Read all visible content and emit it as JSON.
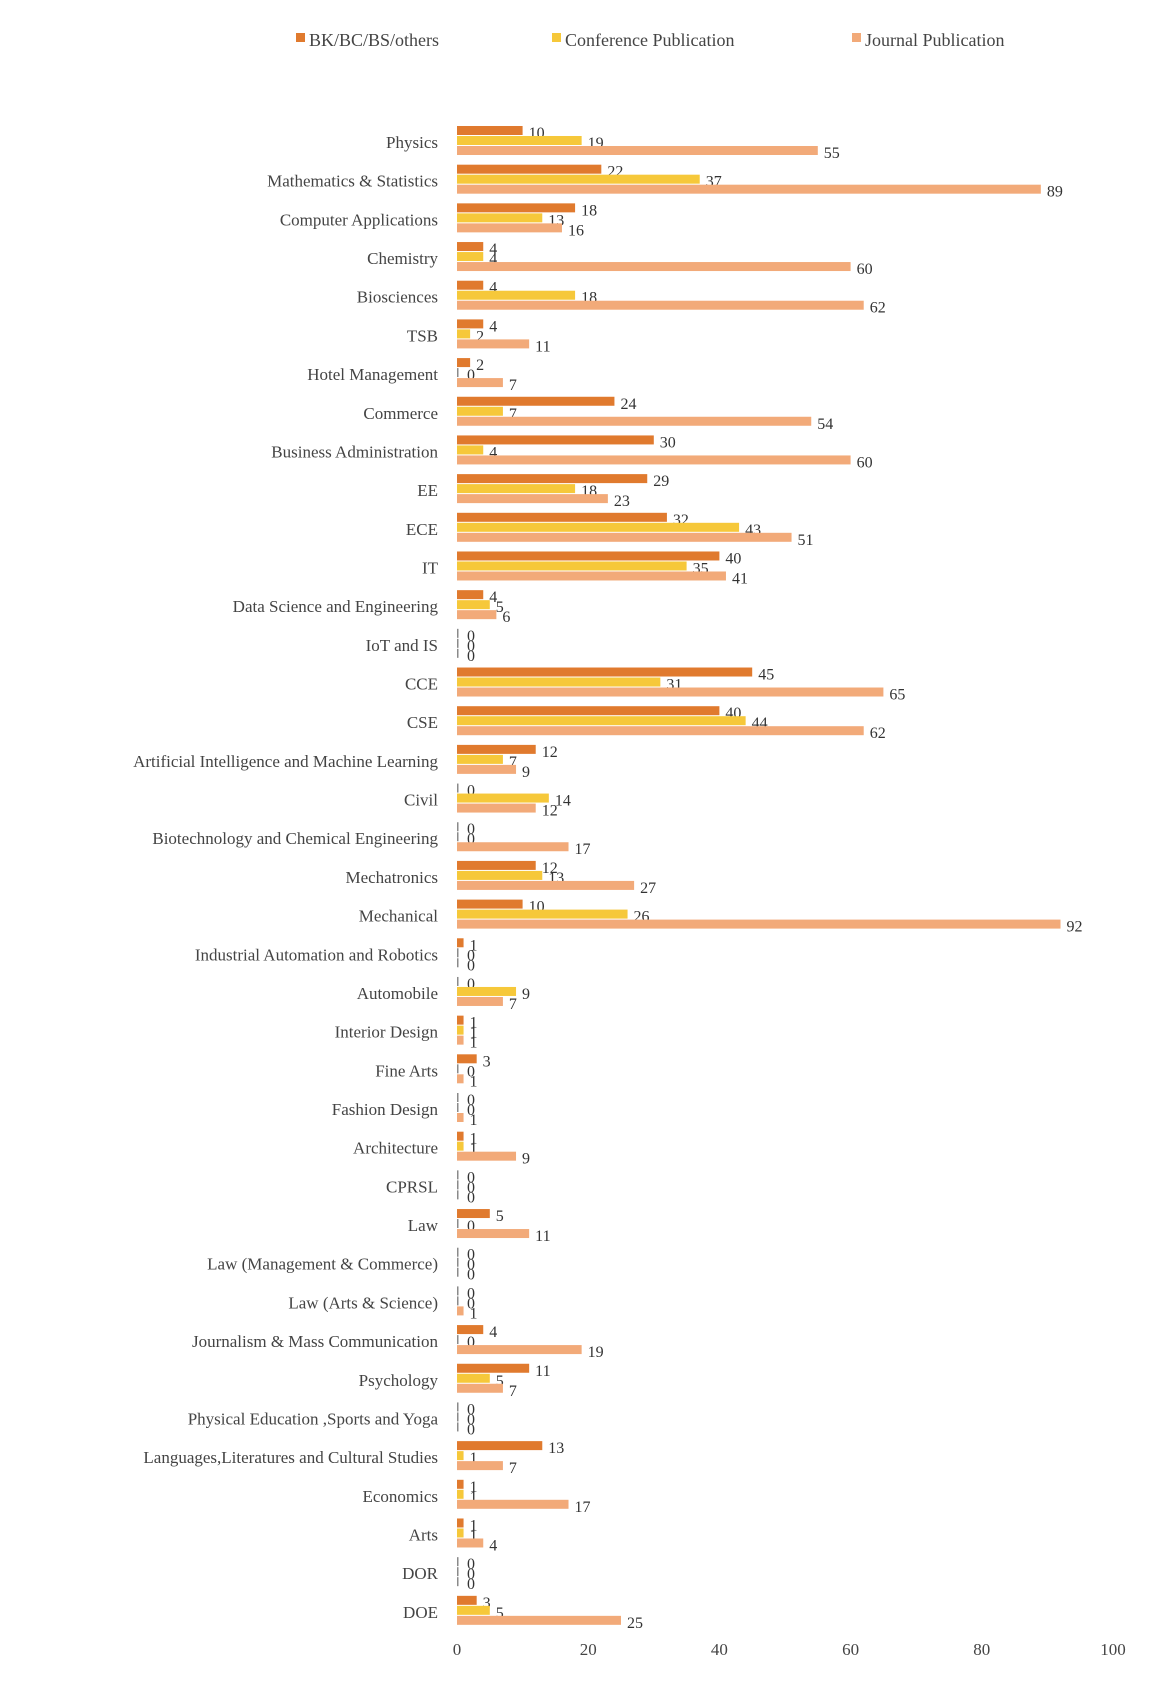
{
  "chart_data": {
    "type": "bar",
    "orientation": "horizontal",
    "categories": [
      "Physics",
      "Mathematics & Statistics",
      "Computer Applications",
      "Chemistry",
      "Biosciences",
      "TSB",
      "Hotel Management",
      "Commerce",
      "Business Administration",
      "EE",
      "ECE",
      "IT",
      "Data Science and Engineering",
      "IoT and IS",
      "CCE",
      "CSE",
      "Artificial Intelligence and Machine Learning",
      "Civil",
      "Biotechnology and Chemical Engineering",
      "Mechatronics",
      "Mechanical",
      "Industrial Automation and Robotics",
      "Automobile",
      "Interior Design",
      "Fine Arts",
      "Fashion Design",
      "Architecture",
      "CPRSL",
      "Law",
      "Law (Management & Commerce)",
      "Law (Arts & Science)",
      "Journalism & Mass Communication",
      "Psychology",
      "Physical Education ,Sports and Yoga",
      "Languages,Literatures and Cultural Studies",
      "Economics",
      "Arts",
      "DOR",
      "DOE"
    ],
    "series": [
      {
        "name": "BK/BC/BS/others",
        "color": "#E07A2E",
        "values": [
          10,
          22,
          18,
          4,
          4,
          4,
          2,
          24,
          30,
          29,
          32,
          40,
          4,
          0,
          45,
          40,
          12,
          0,
          0,
          12,
          10,
          1,
          0,
          1,
          3,
          0,
          1,
          0,
          5,
          0,
          0,
          4,
          11,
          0,
          13,
          1,
          1,
          0,
          3
        ]
      },
      {
        "name": "Conference Publication",
        "color": "#F6C83A",
        "values": [
          19,
          37,
          13,
          4,
          18,
          2,
          0,
          7,
          4,
          18,
          43,
          35,
          5,
          0,
          31,
          44,
          7,
          14,
          0,
          13,
          26,
          0,
          9,
          1,
          0,
          0,
          1,
          0,
          0,
          0,
          0,
          0,
          5,
          0,
          1,
          1,
          1,
          0,
          5
        ]
      },
      {
        "name": "Journal Publication",
        "color": "#F2AA79",
        "values": [
          55,
          89,
          16,
          60,
          62,
          11,
          7,
          54,
          60,
          23,
          51,
          41,
          6,
          0,
          65,
          62,
          9,
          12,
          17,
          27,
          92,
          0,
          7,
          1,
          1,
          1,
          9,
          0,
          11,
          0,
          1,
          19,
          7,
          0,
          7,
          17,
          4,
          0,
          25
        ]
      }
    ],
    "xlim": [
      0,
      100
    ],
    "xticks": [
      0,
      20,
      40,
      60,
      80,
      100
    ],
    "xticks_labels": [
      "0",
      "20",
      "40",
      "60",
      "80",
      "100"
    ],
    "legend_position": "top",
    "grid": false,
    "data_labels": true
  }
}
